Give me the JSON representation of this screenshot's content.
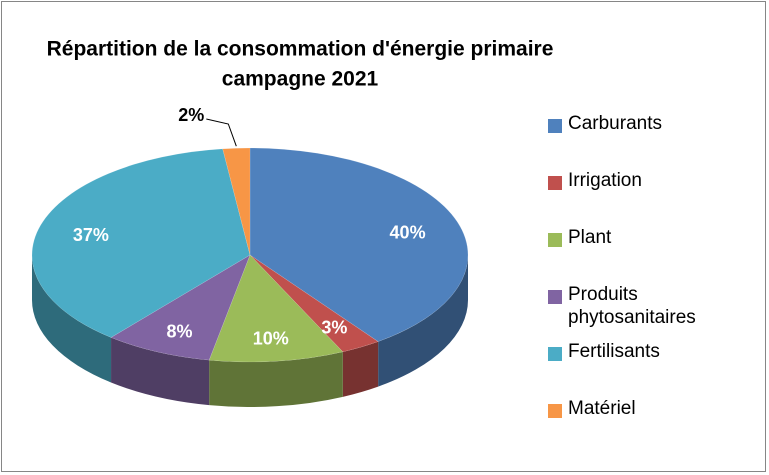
{
  "chart_data": {
    "type": "pie",
    "title": [
      "Répartition de la consommation d'énergie primaire",
      "campagne 2021"
    ],
    "categories": [
      "Carburants",
      "Irrigation",
      "Plant",
      "Produits phytosanitaires",
      "Fertilisants",
      "Matériel"
    ],
    "values": [
      40,
      3,
      10,
      8,
      37,
      2
    ],
    "value_labels": [
      "40%",
      "3%",
      "10%",
      "8%",
      "37%",
      "2%"
    ],
    "colors": [
      "#4f81bd",
      "#c0504d",
      "#9bbb59",
      "#8064a2",
      "#4bacc6",
      "#f79646"
    ],
    "legend": "right"
  }
}
